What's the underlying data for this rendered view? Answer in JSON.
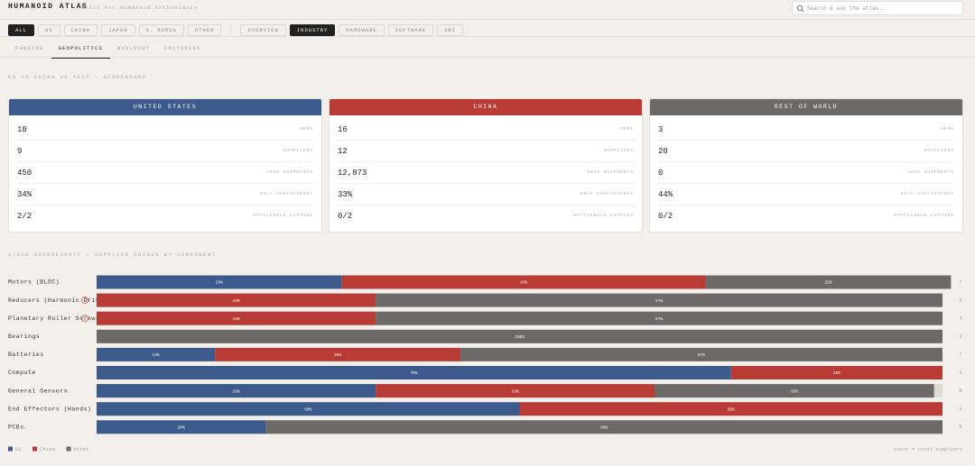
{
  "header": {
    "title": "HUMANOID ATLAS",
    "tagline": "Built For Humanoid Enthusiasts",
    "search_placeholder": "Search & ask the atlas..."
  },
  "filters": {
    "regions": [
      "ALL",
      "US",
      "CHINA",
      "JAPAN",
      "S. KOREA",
      "OTHER"
    ],
    "active_region": 0,
    "views": [
      "OVERVIEW",
      "INDUSTRY",
      "HARDWARE",
      "SOFTWARE",
      "VBI"
    ],
    "active_view": 1
  },
  "tabs": {
    "items": [
      "FUNDING",
      "GEOPOLITICS",
      "BUILDOUT",
      "FACTORIES"
    ],
    "active": 1
  },
  "scoreboard": {
    "title": "US VS CHINA VS REST — SCOREBOARD",
    "metrics": [
      "OEMS",
      "SUPPLIERS",
      "2025 SHIPMENTS",
      "SELF-SUFFICIENCY",
      "BOTTLENECK EXPOSED"
    ],
    "columns": [
      {
        "name": "UNITED STATES",
        "color": "#3c5a8b",
        "values": [
          "10",
          "9",
          "450",
          "34%",
          "2/2"
        ]
      },
      {
        "name": "CHINA",
        "color": "#b93b36",
        "values": [
          "16",
          "12",
          "12,873",
          "33%",
          "0/2"
        ]
      },
      {
        "name": "REST OF WORLD",
        "color": "#6b6a69",
        "values": [
          "3",
          "20",
          "0",
          "44%",
          "0/2"
        ]
      }
    ]
  },
  "chart_data": {
    "type": "bar",
    "orientation": "horizontal",
    "stacked": true,
    "title": "STACK SOVEREIGNTY — SUPPLIER ORIGIN BY COMPONENT",
    "categories": [
      "Motors (BLDC)",
      "Reducers (Harmonic Drive)",
      "Planetary Roller Screws",
      "Bearings",
      "Batteries",
      "Compute",
      "General Sensors",
      "End Effectors (Hands)",
      "PCBs"
    ],
    "alerts": [
      null,
      "!",
      "!",
      null,
      null,
      null,
      null,
      null,
      null
    ],
    "counts": [
      7,
      3,
      3,
      3,
      7,
      4,
      6,
      2,
      5
    ],
    "xlim": [
      0,
      100
    ],
    "series": [
      {
        "name": "US",
        "color": "#3c5a8b",
        "values": [
          29,
          null,
          null,
          null,
          14,
          75,
          33,
          50,
          20
        ],
        "value_labels": [
          "29%",
          null,
          null,
          null,
          "14%",
          "75%",
          "33%",
          "50%",
          "20%"
        ]
      },
      {
        "name": "China",
        "color": "#b93b36",
        "values": [
          43,
          33,
          33,
          null,
          29,
          25,
          33,
          50,
          null
        ],
        "value_labels": [
          "43%",
          "33%",
          "33%",
          null,
          "29%",
          "25%",
          "33%",
          "50%",
          null
        ]
      },
      {
        "name": "Other",
        "color": "#6b6a69",
        "values": [
          29,
          67,
          67,
          100,
          57,
          null,
          33,
          null,
          80
        ],
        "value_labels": [
          "29%",
          "67%",
          "67%",
          "100%",
          "57%",
          null,
          "33%",
          null,
          "80%"
        ]
      }
    ],
    "note": "Count = total suppliers"
  }
}
